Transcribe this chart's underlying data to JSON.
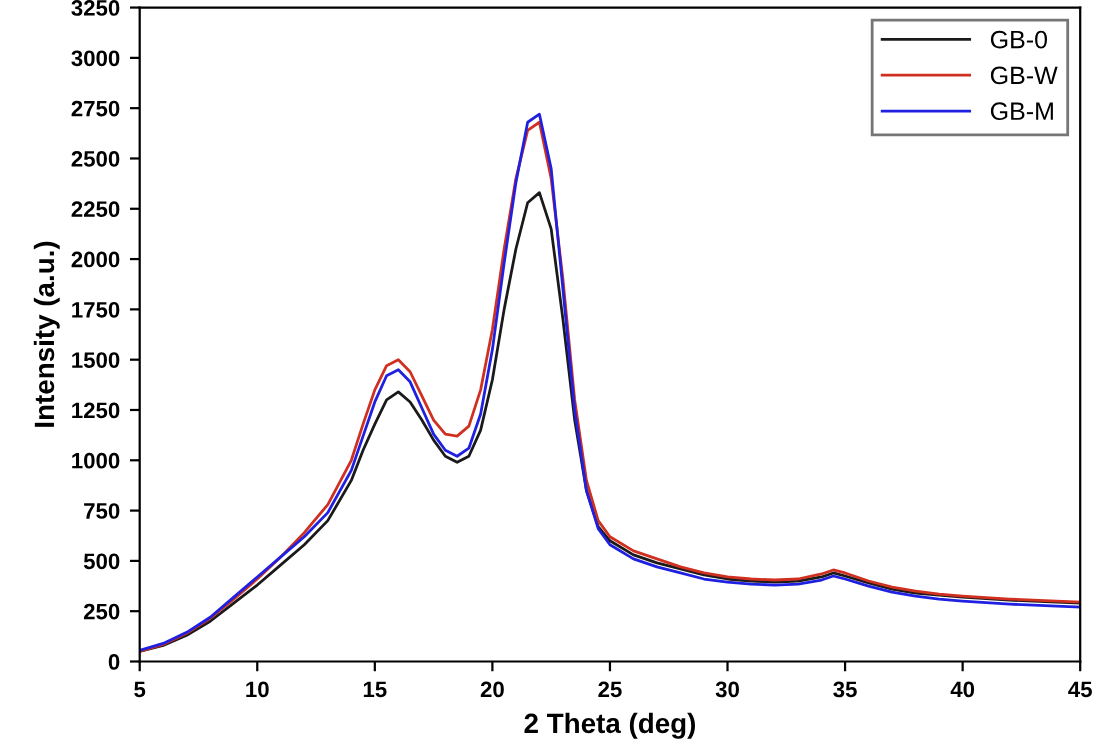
{
  "chart_data": {
    "type": "line",
    "xlabel": "2 Theta (deg)",
    "ylabel": "Intensity (a.u.)",
    "x": [
      5,
      6,
      7,
      8,
      9,
      10,
      11,
      12,
      13,
      14,
      14.5,
      15,
      15.5,
      16,
      16.5,
      17,
      17.5,
      18,
      18.5,
      19,
      19.5,
      20,
      20.5,
      21,
      21.5,
      22,
      22.5,
      23,
      23.5,
      24,
      24.5,
      25,
      26,
      27,
      28,
      29,
      30,
      31,
      32,
      33,
      34,
      34.5,
      35,
      36,
      37,
      38,
      39,
      40,
      42,
      44,
      45
    ],
    "series": [
      {
        "name": "GB-0",
        "color": "#1a1a1a",
        "values": [
          50,
          80,
          130,
          200,
          290,
          380,
          480,
          580,
          700,
          900,
          1050,
          1180,
          1300,
          1340,
          1290,
          1200,
          1100,
          1020,
          990,
          1020,
          1150,
          1400,
          1750,
          2050,
          2280,
          2330,
          2150,
          1700,
          1200,
          850,
          670,
          600,
          530,
          490,
          460,
          430,
          410,
          400,
          395,
          400,
          420,
          440,
          425,
          390,
          360,
          340,
          330,
          320,
          305,
          295,
          290
        ]
      },
      {
        "name": "GB-W",
        "color": "#d03020",
        "values": [
          50,
          85,
          140,
          215,
          310,
          410,
          520,
          640,
          780,
          1000,
          1180,
          1350,
          1470,
          1500,
          1440,
          1320,
          1200,
          1130,
          1120,
          1170,
          1350,
          1650,
          2050,
          2400,
          2640,
          2680,
          2400,
          1900,
          1300,
          900,
          700,
          620,
          550,
          510,
          470,
          440,
          420,
          410,
          405,
          410,
          435,
          455,
          440,
          400,
          370,
          350,
          335,
          325,
          310,
          300,
          295
        ]
      },
      {
        "name": "GB-M",
        "color": "#2020e0",
        "values": [
          55,
          90,
          145,
          220,
          320,
          420,
          520,
          620,
          740,
          950,
          1120,
          1290,
          1420,
          1450,
          1390,
          1260,
          1130,
          1050,
          1020,
          1060,
          1230,
          1550,
          1980,
          2380,
          2680,
          2720,
          2450,
          1850,
          1250,
          850,
          660,
          580,
          510,
          470,
          440,
          410,
          395,
          385,
          380,
          385,
          405,
          425,
          410,
          375,
          345,
          325,
          310,
          300,
          285,
          275,
          270
        ]
      }
    ],
    "xlim": [
      5,
      45
    ],
    "xticks": [
      5,
      10,
      15,
      20,
      25,
      30,
      35,
      40,
      45
    ],
    "ylim": [
      0,
      3250
    ],
    "yticks": [
      0,
      250,
      500,
      750,
      1000,
      1250,
      1500,
      1750,
      2000,
      2250,
      2500,
      2750,
      3000,
      3250
    ],
    "grid": false,
    "legend": "top right"
  }
}
